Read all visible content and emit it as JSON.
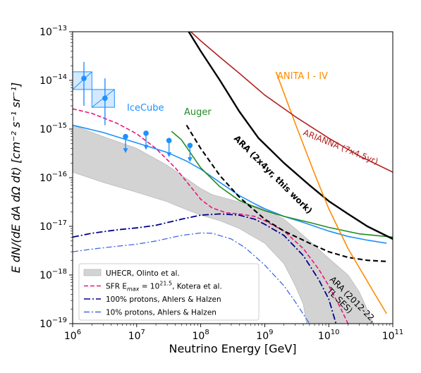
{
  "chart_data": {
    "type": "line",
    "xlabel": "Neutrino Energy [GeV]",
    "ylabel": "E dN/(dE dA dΩ dt) [cm⁻² s⁻¹ sr⁻¹]",
    "xscale": "log",
    "yscale": "log",
    "xlim": [
      1000000.0,
      100000000000.0
    ],
    "ylim": [
      1e-19,
      1e-13
    ],
    "x_ticks": [
      {
        "value": 1000000.0,
        "base": "10",
        "exp": "6"
      },
      {
        "value": 10000000.0,
        "base": "10",
        "exp": "7"
      },
      {
        "value": 100000000.0,
        "base": "10",
        "exp": "8"
      },
      {
        "value": 1000000000.0,
        "base": "10",
        "exp": "9"
      },
      {
        "value": 10000000000.0,
        "base": "10",
        "exp": "10"
      },
      {
        "value": 100000000000.0,
        "base": "10",
        "exp": "11"
      }
    ],
    "y_ticks": [
      {
        "value": 1e-19,
        "base": "10",
        "exp": "−19"
      },
      {
        "value": 1e-18,
        "base": "10",
        "exp": "−18"
      },
      {
        "value": 1e-17,
        "base": "10",
        "exp": "−17"
      },
      {
        "value": 1e-16,
        "base": "10",
        "exp": "−16"
      },
      {
        "value": 1e-15,
        "base": "10",
        "exp": "−15"
      },
      {
        "value": 1e-14,
        "base": "10",
        "exp": "−14"
      },
      {
        "value": 1e-13,
        "base": "10",
        "exp": "−13"
      }
    ],
    "grid": false,
    "legend_position": "lower-left",
    "bands": [
      {
        "name": "UHECR, Olinto et al.",
        "color": "#d3d3d3",
        "upper": [
          [
            1000000.0,
            1.2e-15
          ],
          [
            3000000.0,
            7e-16
          ],
          [
            10000000.0,
            4e-16
          ],
          [
            30000000.0,
            1.8e-16
          ],
          [
            100000000.0,
            6e-17
          ],
          [
            150000000.0,
            4.5e-17
          ],
          [
            300000000.0,
            3.5e-17
          ],
          [
            1000000000.0,
            2.3e-17
          ],
          [
            2000000000.0,
            1.4e-17
          ],
          [
            3000000000.0,
            9e-18
          ],
          [
            5000000000.0,
            5e-18
          ],
          [
            10000000000.0,
            2.2e-18
          ],
          [
            20000000000.0,
            1e-18
          ],
          [
            30000000000.0,
            4.5e-19
          ],
          [
            50000000000.0,
            1e-19
          ]
        ],
        "lower": [
          [
            1000000.0,
            1.3e-16
          ],
          [
            3000000.0,
            8e-17
          ],
          [
            10000000.0,
            5e-17
          ],
          [
            30000000.0,
            3.2e-17
          ],
          [
            60000000.0,
            2.2e-17
          ],
          [
            100000000.0,
            1.7e-17
          ],
          [
            200000000.0,
            1.3e-17
          ],
          [
            400000000.0,
            9e-18
          ],
          [
            1000000000.0,
            4.5e-18
          ],
          [
            2000000000.0,
            1.7e-18
          ],
          [
            3000000000.0,
            6e-19
          ],
          [
            4000000000.0,
            2.5e-19
          ],
          [
            4500000000.0,
            1e-19
          ]
        ]
      }
    ],
    "series": [
      {
        "name": "SFR E_max = 10^21.5, Kotera et al.",
        "color": "#e8187a",
        "dash": "6,3",
        "width": 1.6,
        "points": [
          [
            1000000.0,
            2.6e-15
          ],
          [
            2000000.0,
            2.1e-15
          ],
          [
            5000000.0,
            1.3e-15
          ],
          [
            10000000.0,
            8e-16
          ],
          [
            20000000.0,
            4e-16
          ],
          [
            40000000.0,
            1.6e-16
          ],
          [
            70000000.0,
            6.5e-17
          ],
          [
            100000000.0,
            3.6e-17
          ],
          [
            150000000.0,
            2.4e-17
          ],
          [
            250000000.0,
            1.9e-17
          ],
          [
            400000000.0,
            1.8e-17
          ],
          [
            700000000.0,
            1.6e-17
          ],
          [
            1000000000.0,
            1.3e-17
          ],
          [
            2000000000.0,
            8e-18
          ],
          [
            4000000000.0,
            3.5e-18
          ],
          [
            7000000000.0,
            1.3e-18
          ],
          [
            10000000000.0,
            6e-19
          ],
          [
            15000000000.0,
            2.2e-19
          ],
          [
            20000000000.0,
            1e-19
          ]
        ]
      },
      {
        "name": "100% protons, Ahlers & Halzen",
        "color": "#00008b",
        "dash": "9,3,2,3",
        "width": 1.8,
        "points": [
          [
            1000000.0,
            6e-18
          ],
          [
            2000000.0,
            7.2e-18
          ],
          [
            5000000.0,
            8.5e-18
          ],
          [
            10000000.0,
            9.3e-18
          ],
          [
            20000000.0,
            1.05e-17
          ],
          [
            50000000.0,
            1.4e-17
          ],
          [
            100000000.0,
            1.7e-17
          ],
          [
            200000000.0,
            1.8e-17
          ],
          [
            400000000.0,
            1.7e-17
          ],
          [
            700000000.0,
            1.4e-17
          ],
          [
            1000000000.0,
            1.1e-17
          ],
          [
            2000000000.0,
            6.5e-18
          ],
          [
            4000000000.0,
            2.5e-18
          ],
          [
            7000000000.0,
            8e-19
          ],
          [
            10000000000.0,
            3.2e-19
          ],
          [
            13000000000.0,
            1e-19
          ]
        ]
      },
      {
        "name": "10% protons, Ahlers & Halzen",
        "color": "#4169e1",
        "dash": "8,3,2,3",
        "width": 1.3,
        "points": [
          [
            1000000.0,
            3e-18
          ],
          [
            2000000.0,
            3.4e-18
          ],
          [
            5000000.0,
            3.9e-18
          ],
          [
            10000000.0,
            4.3e-18
          ],
          [
            20000000.0,
            5e-18
          ],
          [
            50000000.0,
            6.5e-18
          ],
          [
            100000000.0,
            7.3e-18
          ],
          [
            150000000.0,
            7.2e-18
          ],
          [
            300000000.0,
            5.5e-18
          ],
          [
            500000000.0,
            3.6e-18
          ],
          [
            1000000000.0,
            1.6e-18
          ],
          [
            2000000000.0,
            6e-19
          ],
          [
            3000000000.0,
            2.8e-19
          ],
          [
            5000000000.0,
            1e-19
          ]
        ]
      },
      {
        "name": "IceCube",
        "color": "#1e90ff",
        "dash": "",
        "width": 1.6,
        "points": [
          [
            1000000.0,
            1.2e-15
          ],
          [
            3000000.0,
            8.5e-16
          ],
          [
            10000000.0,
            5.2e-16
          ],
          [
            30000000.0,
            3.3e-16
          ],
          [
            60000000.0,
            2.2e-16
          ],
          [
            100000000.0,
            1.5e-16
          ],
          [
            200000000.0,
            8e-17
          ],
          [
            400000000.0,
            4.3e-17
          ],
          [
            700000000.0,
            2.9e-17
          ],
          [
            1000000000.0,
            2.3e-17
          ],
          [
            2000000000.0,
            1.6e-17
          ],
          [
            4000000000.0,
            1.2e-17
          ],
          [
            10000000000.0,
            8e-18
          ],
          [
            20000000000.0,
            6.2e-18
          ],
          [
            40000000000.0,
            5.2e-18
          ],
          [
            80000000000.0,
            4.5e-18
          ]
        ]
      },
      {
        "name": "Auger",
        "color": "#228b22",
        "dash": "",
        "width": 1.6,
        "points": [
          [
            35000000.0,
            9e-16
          ],
          [
            50000000.0,
            6e-16
          ],
          [
            100000000.0,
            1.6e-16
          ],
          [
            200000000.0,
            6.5e-17
          ],
          [
            400000000.0,
            3.4e-17
          ],
          [
            700000000.0,
            2.5e-17
          ],
          [
            1000000000.0,
            2.1e-17
          ],
          [
            2000000000.0,
            1.6e-17
          ],
          [
            5000000000.0,
            1.2e-17
          ],
          [
            10000000000.0,
            9.5e-18
          ],
          [
            30000000000.0,
            7e-18
          ],
          [
            100000000000.0,
            6e-18
          ]
        ]
      },
      {
        "name": "ARA (2x4yr, this work)",
        "color": "#000000",
        "dash": "",
        "width": 2.4,
        "points": [
          [
            65000000.0,
            1e-13
          ],
          [
            100000000.0,
            4e-14
          ],
          [
            200000000.0,
            1e-14
          ],
          [
            400000000.0,
            2.3e-15
          ],
          [
            800000000.0,
            6.5e-16
          ],
          [
            2000000000.0,
            2e-16
          ],
          [
            5000000000.0,
            7e-17
          ],
          [
            10000000000.0,
            3.3e-17
          ],
          [
            20000000000.0,
            1.8e-17
          ],
          [
            40000000000.0,
            1e-17
          ],
          [
            100000000000.0,
            5.5e-18
          ]
        ]
      },
      {
        "name": "ARA (2012-22, TL SES)",
        "color": "#000000",
        "dash": "7,4",
        "width": 2.1,
        "points": [
          [
            60000000.0,
            1.2e-15
          ],
          [
            100000000.0,
            4e-16
          ],
          [
            200000000.0,
            1.1e-16
          ],
          [
            400000000.0,
            4e-17
          ],
          [
            1000000000.0,
            1.4e-17
          ],
          [
            2000000000.0,
            8e-18
          ],
          [
            5000000000.0,
            4.5e-18
          ],
          [
            10000000000.0,
            3e-18
          ],
          [
            20000000000.0,
            2.3e-18
          ],
          [
            40000000000.0,
            2e-18
          ],
          [
            80000000000.0,
            1.9e-18
          ]
        ]
      },
      {
        "name": "ANITA I - IV",
        "color": "#ff8c00",
        "dash": "",
        "width": 1.6,
        "points": [
          [
            1500000000.0,
            1.5e-14
          ],
          [
            3000000000.0,
            1.3e-15
          ],
          [
            6000000000.0,
            1.2e-16
          ],
          [
            10000000000.0,
            2.3e-17
          ],
          [
            20000000000.0,
            3.5e-18
          ],
          [
            50000000000.0,
            4.5e-19
          ],
          [
            80000000000.0,
            1.6e-19
          ]
        ]
      },
      {
        "name": "ARIANNA (7x4.5yr)",
        "color": "#b22222",
        "dash": "",
        "width": 1.6,
        "points": [
          [
            70000000.0,
            1e-13
          ],
          [
            100000000.0,
            6.5e-14
          ],
          [
            200000000.0,
            3e-14
          ],
          [
            400000000.0,
            1.4e-14
          ],
          [
            1000000000.0,
            5e-15
          ],
          [
            3000000000.0,
            1.8e-15
          ],
          [
            10000000000.0,
            6.5e-16
          ],
          [
            30000000000.0,
            2.8e-16
          ],
          [
            100000000000.0,
            1.3e-16
          ]
        ]
      }
    ],
    "icecube_points": [
      {
        "x": 1500000.0,
        "y": 1.1e-14,
        "lo": 3e-15,
        "hi": 2.4e-14,
        "limit": false
      },
      {
        "x": 3200000.0,
        "y": 4.3e-15,
        "lo": 1.2e-15,
        "hi": 1.1e-14,
        "limit": false
      },
      {
        "x": 6700000.0,
        "y": 7e-16,
        "limit": true
      },
      {
        "x": 14000000.0,
        "y": 8.2e-16,
        "limit": true
      },
      {
        "x": 32000000.0,
        "y": 5.8e-16,
        "limit": true
      },
      {
        "x": 68000000.0,
        "y": 4.6e-16,
        "limit": true
      }
    ],
    "icecube_boxes": [
      {
        "x0": 1000000.0,
        "x1": 2000000.0,
        "y0": 6.5e-15,
        "y1": 1.5e-14
      },
      {
        "x0": 2000000.0,
        "x1": 4500000.0,
        "y0": 2.8e-15,
        "y1": 6.5e-15
      }
    ],
    "annotations": [
      {
        "text": "IceCube",
        "color": "#1e90ff"
      },
      {
        "text": "Auger",
        "color": "#228b22"
      },
      {
        "text": "ANITA I - IV",
        "color": "#ff8c00"
      },
      {
        "text": "ARIANNA (7x4.5yr)",
        "color": "#b22222"
      },
      {
        "text": "ARA (2x4yr, this work)",
        "color": "#000000"
      },
      {
        "text": "ARA (2012-22,",
        "color": "#000000"
      },
      {
        "text": "TL SES)",
        "color": "#000000"
      }
    ],
    "legend": [
      {
        "label": "UHECR, Olinto et al.",
        "kind": "patch",
        "color": "#d3d3d3"
      },
      {
        "label": "SFR E",
        "sub": "max",
        "tail": " = 10",
        "sup": "21.5",
        "end": ", Kotera et al.",
        "kind": "line",
        "color": "#e8187a",
        "dash": "6,3"
      },
      {
        "label": "100% protons, Ahlers & Halzen",
        "kind": "line",
        "color": "#00008b",
        "dash": "9,3,2,3"
      },
      {
        "label": "10% protons, Ahlers & Halzen",
        "kind": "line",
        "color": "#4169e1",
        "dash": "8,3,2,3"
      }
    ]
  }
}
